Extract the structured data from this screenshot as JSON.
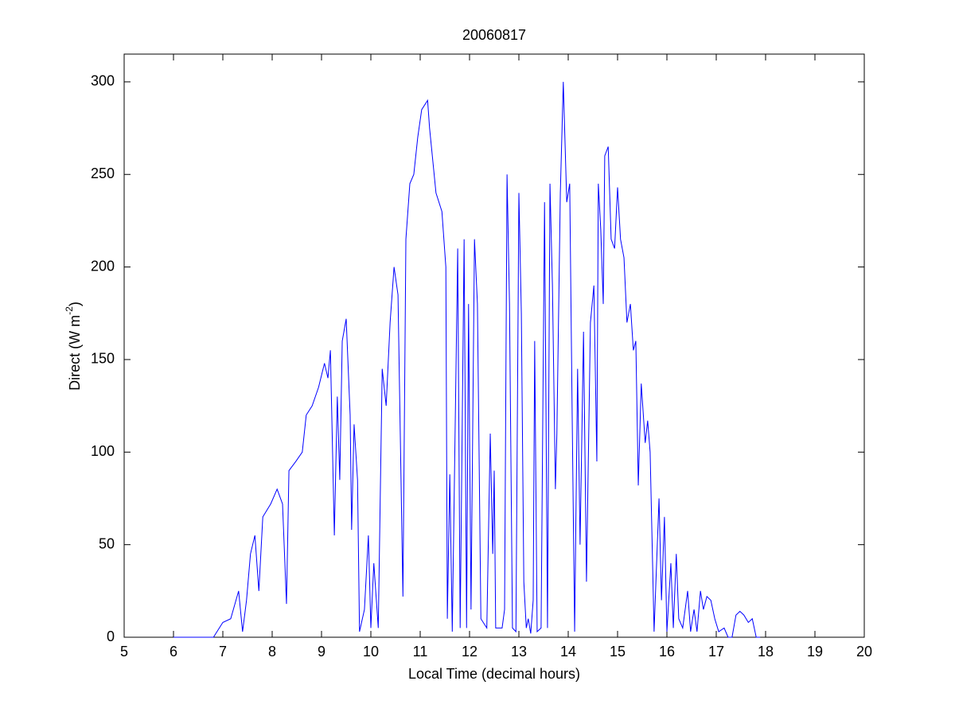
{
  "chart_data": {
    "type": "line",
    "title": "20060817",
    "x_label": "Local Time (decimal hours)",
    "y_label": [
      "Direct (W m",
      "-2",
      ")"
    ],
    "xlim": [
      5,
      20
    ],
    "xticks": [
      5,
      6,
      7,
      8,
      9,
      10,
      11,
      12,
      13,
      14,
      15,
      16,
      17,
      18,
      19,
      20
    ],
    "ylim": [
      0,
      315
    ],
    "yticks": [
      0,
      50,
      100,
      150,
      200,
      250,
      300
    ],
    "grid": false,
    "series": [
      {
        "color": "#0000ff",
        "x": [
          6.0,
          6.81,
          7.0,
          7.16,
          7.32,
          7.4,
          7.48,
          7.56,
          7.65,
          7.73,
          7.81,
          7.97,
          8.1,
          8.21,
          8.29,
          8.34,
          8.48,
          8.61,
          8.69,
          8.81,
          8.94,
          9.06,
          9.13,
          9.18,
          9.26,
          9.32,
          9.37,
          9.42,
          9.5,
          9.58,
          9.61,
          9.66,
          9.73,
          9.77,
          9.87,
          9.95,
          10.0,
          10.06,
          10.15,
          10.23,
          10.31,
          10.39,
          10.47,
          10.55,
          10.65,
          10.71,
          10.79,
          10.87,
          10.95,
          11.03,
          11.15,
          11.19,
          11.32,
          11.44,
          11.52,
          11.55,
          11.6,
          11.65,
          11.76,
          11.81,
          11.89,
          11.94,
          11.98,
          12.03,
          12.1,
          12.16,
          12.23,
          12.35,
          12.42,
          12.47,
          12.5,
          12.53,
          12.66,
          12.71,
          12.76,
          12.81,
          12.87,
          12.94,
          13.0,
          13.05,
          13.1,
          13.15,
          13.19,
          13.24,
          13.29,
          13.32,
          13.37,
          13.45,
          13.52,
          13.58,
          13.63,
          13.68,
          13.74,
          13.77,
          13.84,
          13.9,
          13.97,
          14.03,
          14.08,
          14.13,
          14.19,
          14.24,
          14.31,
          14.37,
          14.45,
          14.52,
          14.58,
          14.61,
          14.66,
          14.71,
          14.74,
          14.81,
          14.87,
          14.94,
          15.0,
          15.06,
          15.13,
          15.19,
          15.26,
          15.32,
          15.37,
          15.42,
          15.48,
          15.56,
          15.61,
          15.66,
          15.74,
          15.84,
          15.89,
          15.95,
          16.0,
          16.08,
          16.13,
          16.19,
          16.24,
          16.32,
          16.42,
          16.48,
          16.55,
          16.61,
          16.68,
          16.74,
          16.81,
          16.89,
          16.97,
          17.05,
          17.16,
          17.24,
          17.32,
          17.4,
          17.48,
          17.56,
          17.65,
          17.73,
          17.81,
          17.89
        ],
        "values": [
          0,
          0,
          8,
          10,
          25,
          3,
          20,
          45,
          55,
          25,
          65,
          72,
          80,
          72,
          18,
          90,
          95,
          100,
          120,
          125,
          135,
          148,
          140,
          155,
          55,
          130,
          85,
          160,
          172,
          120,
          58,
          115,
          85,
          3,
          15,
          55,
          5,
          40,
          5,
          145,
          125,
          170,
          200,
          185,
          22,
          215,
          245,
          250,
          270,
          285,
          290,
          275,
          240,
          230,
          200,
          10,
          88,
          3,
          210,
          5,
          215,
          5,
          180,
          15,
          215,
          180,
          10,
          5,
          110,
          45,
          90,
          5,
          5,
          15,
          250,
          180,
          5,
          3,
          240,
          175,
          30,
          5,
          10,
          2,
          20,
          160,
          3,
          5,
          235,
          5,
          245,
          190,
          80,
          110,
          240,
          300,
          235,
          245,
          120,
          3,
          145,
          50,
          165,
          30,
          170,
          190,
          95,
          245,
          220,
          180,
          260,
          265,
          215,
          210,
          243,
          215,
          205,
          170,
          180,
          155,
          160,
          82,
          137,
          105,
          117,
          100,
          3,
          75,
          20,
          65,
          3,
          40,
          5,
          45,
          10,
          5,
          25,
          3,
          15,
          3,
          25,
          15,
          22,
          20,
          10,
          3,
          5,
          0,
          0,
          12,
          14,
          12,
          8,
          10,
          0,
          0
        ]
      }
    ]
  }
}
